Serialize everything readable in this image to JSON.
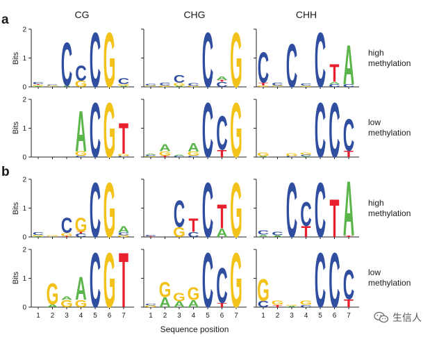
{
  "chart_data": {
    "type": "sequence-logo",
    "colors": {
      "A": "#5bb54a",
      "C": "#2f4ea0",
      "G": "#f2c21a",
      "T": "#e8202e"
    },
    "yrange": [
      0,
      2
    ],
    "yticks": [
      "0",
      "1",
      "2"
    ],
    "ylabel": "Bits",
    "xlabel": "Sequence position",
    "xticks": [
      "1",
      "2",
      "3",
      "4",
      "5",
      "6",
      "7"
    ],
    "columns": [
      "CG",
      "CHG",
      "CHH"
    ],
    "row_labels": [
      {
        "line1": "high",
        "line2": "methylation"
      },
      {
        "line1": "low",
        "line2": "methylation"
      },
      {
        "line1": "high",
        "line2": "methylation"
      },
      {
        "line1": "low",
        "line2": "methylation"
      }
    ],
    "panel_letters": [
      {
        "label": "a"
      },
      {
        "label": "b"
      }
    ],
    "rows": [
      [
        [
          [
            [
              "A",
              0.03
            ],
            [
              "G",
              0.04
            ],
            [
              "T",
              0.03
            ],
            [
              "C",
              0.08
            ]
          ],
          [
            [
              "A",
              0.02
            ],
            [
              "G",
              0.03
            ],
            [
              "C",
              0.03
            ]
          ],
          [
            [
              "A",
              0.05
            ],
            [
              "C",
              1.55
            ]
          ],
          [
            [
              "G",
              0.22
            ],
            [
              "C",
              0.55
            ]
          ],
          [
            [
              "C",
              1.95
            ]
          ],
          [
            [
              "G",
              1.95
            ]
          ],
          [
            [
              "A",
              0.04
            ],
            [
              "G",
              0.06
            ],
            [
              "C",
              0.2
            ]
          ]
        ],
        [
          [
            [
              "A",
              0.02
            ],
            [
              "G",
              0.03
            ],
            [
              "C",
              0.06
            ]
          ],
          [
            [
              "G",
              0.05
            ],
            [
              "C",
              0.1
            ]
          ],
          [
            [
              "A",
              0.04
            ],
            [
              "G",
              0.1
            ],
            [
              "C",
              0.28
            ]
          ],
          [
            [
              "G",
              0.04
            ],
            [
              "C",
              0.1
            ]
          ],
          [
            [
              "C",
              1.95
            ]
          ],
          [
            [
              "C",
              0.18
            ],
            [
              "T",
              0.06
            ],
            [
              "A",
              0.12
            ]
          ],
          [
            [
              "G",
              1.95
            ]
          ]
        ],
        [
          [
            [
              "G",
              0.05
            ],
            [
              "T",
              0.1
            ],
            [
              "C",
              1.1
            ]
          ],
          [
            [
              "A",
              0.02
            ],
            [
              "G",
              0.03
            ],
            [
              "C",
              0.1
            ]
          ],
          [
            [
              "C",
              1.55
            ]
          ],
          [
            [
              "G",
              0.03
            ],
            [
              "A",
              0.02
            ],
            [
              "C",
              0.08
            ]
          ],
          [
            [
              "C",
              1.95
            ]
          ],
          [
            [
              "C",
              0.1
            ],
            [
              "A",
              0.08
            ],
            [
              "T",
              0.62
            ]
          ],
          [
            [
              "C",
              0.1
            ],
            [
              "A",
              1.4
            ]
          ]
        ]
      ],
      [
        [
          [],
          [],
          [],
          [
            [
              "C",
              0.05
            ],
            [
              "G",
              0.16
            ],
            [
              "A",
              1.45
            ]
          ],
          [
            [
              "C",
              1.95
            ]
          ],
          [
            [
              "G",
              1.95
            ]
          ],
          [
            [
              "C",
              0.04
            ],
            [
              "G",
              0.08
            ],
            [
              "T",
              1.1
            ]
          ]
        ],
        [
          [
            [
              "G",
              0.03
            ],
            [
              "C",
              0.04
            ],
            [
              "A",
              0.04
            ]
          ],
          [
            [
              "T",
              0.05
            ],
            [
              "G",
              0.15
            ],
            [
              "A",
              0.25
            ]
          ],
          [
            [
              "C",
              0.04
            ],
            [
              "A",
              0.04
            ]
          ],
          [
            [
              "C",
              0.05
            ],
            [
              "G",
              0.14
            ],
            [
              "A",
              0.3
            ]
          ],
          [
            [
              "C",
              1.95
            ]
          ],
          [
            [
              "T",
              0.25
            ],
            [
              "C",
              1.2
            ]
          ],
          [
            [
              "G",
              1.95
            ]
          ]
        ],
        [
          [
            [
              "A",
              0.04
            ],
            [
              "G",
              0.12
            ]
          ],
          [],
          [
            [
              "C",
              0.04
            ],
            [
              "G",
              0.1
            ]
          ],
          [
            [
              "A",
              0.03
            ],
            [
              "C",
              0.06
            ],
            [
              "G",
              0.08
            ]
          ],
          [
            [
              "C",
              1.95
            ]
          ],
          [
            [
              "C",
              1.95
            ]
          ],
          [
            [
              "T",
              0.22
            ],
            [
              "C",
              1.15
            ]
          ]
        ]
      ],
      [
        [
          [
            [
              "A",
              0.03
            ],
            [
              "G",
              0.04
            ],
            [
              "C",
              0.1
            ]
          ],
          [
            [
              "A",
              0.02
            ],
            [
              "G",
              0.03
            ]
          ],
          [
            [
              "T",
              0.04
            ],
            [
              "G",
              0.1
            ],
            [
              "C",
              0.55
            ]
          ],
          [
            [
              "C",
              0.12
            ],
            [
              "T",
              0.06
            ],
            [
              "G",
              0.5
            ]
          ],
          [
            [
              "C",
              1.95
            ]
          ],
          [
            [
              "G",
              1.95
            ]
          ],
          [
            [
              "G",
              0.06
            ],
            [
              "C",
              0.1
            ],
            [
              "A",
              0.22
            ]
          ]
        ],
        [
          [
            [
              "T",
              0.03
            ],
            [
              "C",
              0.05
            ]
          ],
          [],
          [
            [
              "G",
              0.35
            ],
            [
              "C",
              0.95
            ]
          ],
          [
            [
              "C",
              0.18
            ],
            [
              "T",
              0.48
            ]
          ],
          [
            [
              "C",
              1.95
            ]
          ],
          [
            [
              "A",
              0.3
            ],
            [
              "T",
              0.85
            ]
          ],
          [
            [
              "G",
              1.95
            ]
          ]
        ],
        [
          [
            [
              "A",
              0.08
            ],
            [
              "C",
              0.14
            ]
          ],
          [
            [
              "A",
              0.06
            ],
            [
              "C",
              0.12
            ]
          ],
          [
            [
              "C",
              1.95
            ]
          ],
          [
            [
              "T",
              0.38
            ],
            [
              "C",
              0.85
            ]
          ],
          [
            [
              "C",
              1.95
            ]
          ],
          [
            [
              "T",
              1.35
            ]
          ],
          [
            [
              "T",
              0.05
            ],
            [
              "A",
              1.95
            ]
          ]
        ]
      ],
      [
        [
          [],
          [
            [
              "A",
              0.1
            ],
            [
              "G",
              0.75
            ]
          ],
          [
            [
              "G",
              0.25
            ],
            [
              "A",
              0.12
            ]
          ],
          [
            [
              "G",
              0.25
            ],
            [
              "A",
              0.82
            ]
          ],
          [
            [
              "C",
              1.95
            ]
          ],
          [
            [
              "G",
              1.95
            ]
          ],
          [
            [
              "T",
              1.95
            ]
          ]
        ],
        [
          [
            [
              "G",
              0.06
            ],
            [
              "C",
              0.06
            ]
          ],
          [
            [
              "A",
              0.35
            ],
            [
              "G",
              0.55
            ]
          ],
          [
            [
              "A",
              0.2
            ],
            [
              "G",
              0.3
            ]
          ],
          [
            [
              "A",
              0.25
            ],
            [
              "G",
              0.45
            ]
          ],
          [
            [
              "C",
              1.95
            ]
          ],
          [
            [
              "T",
              0.15
            ],
            [
              "C",
              1.25
            ]
          ],
          [
            [
              "G",
              1.95
            ]
          ]
        ],
        [
          [
            [
              "C",
              0.22
            ],
            [
              "G",
              0.78
            ]
          ],
          [
            [
              "T",
              0.08
            ],
            [
              "G",
              0.14
            ]
          ],
          [
            [
              "A",
              0.05
            ],
            [
              "G",
              0.03
            ]
          ],
          [
            [
              "C",
              0.08
            ],
            [
              "G",
              0.14
            ]
          ],
          [
            [
              "C",
              1.95
            ]
          ],
          [
            [
              "C",
              1.95
            ]
          ],
          [
            [
              "T",
              0.28
            ],
            [
              "C",
              1.05
            ]
          ]
        ]
      ]
    ]
  },
  "watermark": {
    "icon": "wechat-icon",
    "text": "生信人"
  }
}
